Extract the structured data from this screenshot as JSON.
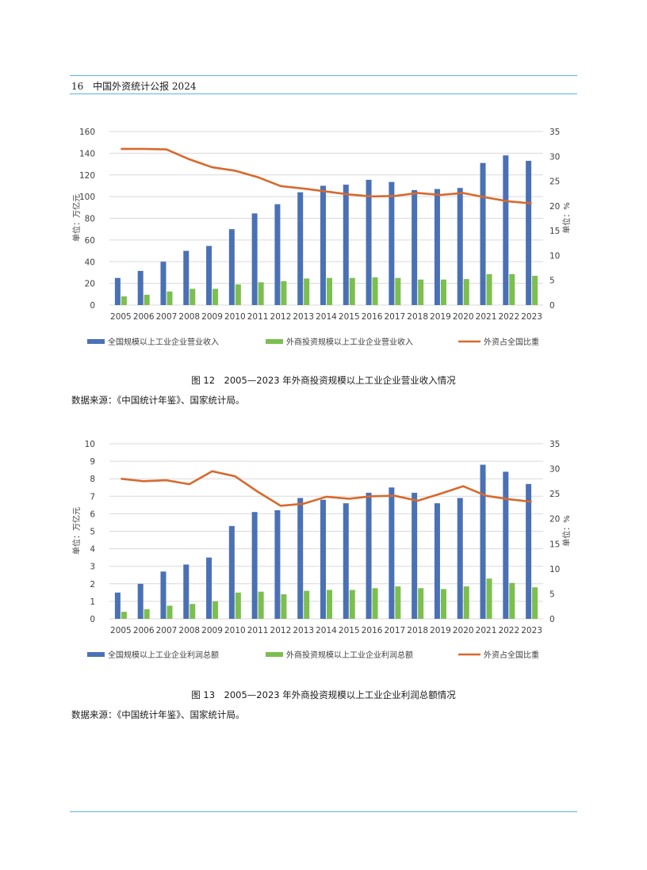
{
  "header": {
    "page_number": "16",
    "title": "中国外资统计公报 2024"
  },
  "colors": {
    "blue": "#4a71b5",
    "green": "#7cbf4f",
    "orange": "#d8692d",
    "grid": "#d9d9d9",
    "rule": "#5ab4e0"
  },
  "chart_data": [
    {
      "type": "bar",
      "title": "图 12　2005—2023 年外商投资规模以上工业企业营业收入情况",
      "categories": [
        "2005",
        "2006",
        "2007",
        "2008",
        "2009",
        "2010",
        "2011",
        "2012",
        "2013",
        "2014",
        "2015",
        "2016",
        "2017",
        "2018",
        "2019",
        "2020",
        "2021",
        "2022",
        "2023"
      ],
      "series": [
        {
          "name": "全国规模以上工业企业营业收入",
          "kind": "bar",
          "axis": "left",
          "values": [
            25,
            31.5,
            40,
            50,
            54.5,
            70,
            84.5,
            93,
            104,
            110,
            111,
            115.5,
            113.5,
            106,
            107,
            108,
            131,
            138,
            133
          ]
        },
        {
          "name": "外商投资规模以上工业企业营业收入",
          "kind": "bar",
          "axis": "left",
          "values": [
            8,
            9.5,
            12.5,
            15,
            15,
            19,
            21,
            22,
            24.5,
            25,
            25,
            25.5,
            25,
            23.5,
            23.5,
            24,
            28.5,
            28.5,
            27
          ]
        },
        {
          "name": "外资占全国比重",
          "kind": "line",
          "axis": "right",
          "values": [
            31.5,
            31.5,
            31.4,
            29.4,
            27.8,
            27.1,
            25.8,
            24.0,
            23.5,
            22.9,
            22.3,
            21.9,
            22.0,
            22.6,
            22.2,
            22.6,
            21.7,
            20.9,
            20.5
          ]
        }
      ],
      "y_left": {
        "label": "单位：万亿元",
        "ylim": [
          0,
          160
        ],
        "ticks": [
          0,
          20,
          40,
          60,
          80,
          100,
          120,
          140,
          160
        ]
      },
      "y_right": {
        "label": "单位：%",
        "ylim": [
          0,
          35
        ],
        "ticks": [
          0,
          5,
          10,
          15,
          20,
          25,
          30,
          35
        ]
      },
      "legend": [
        "全国规模以上工业企业营业收入",
        "外商投资规模以上工业企业营业收入",
        "外资占全国比重"
      ],
      "grid": true
    },
    {
      "type": "bar",
      "title": "图 13　2005—2023 年外商投资规模以上工业企业利润总额情况",
      "categories": [
        "2005",
        "2006",
        "2007",
        "2008",
        "2009",
        "2010",
        "2011",
        "2012",
        "2013",
        "2014",
        "2015",
        "2016",
        "2017",
        "2018",
        "2019",
        "2020",
        "2021",
        "2022",
        "2023"
      ],
      "series": [
        {
          "name": "全国规模以上工业企业利润总额",
          "kind": "bar",
          "axis": "left",
          "values": [
            1.5,
            2.0,
            2.7,
            3.1,
            3.5,
            5.3,
            6.1,
            6.2,
            6.9,
            6.8,
            6.6,
            7.2,
            7.5,
            7.2,
            6.6,
            6.9,
            8.8,
            8.4,
            7.7
          ]
        },
        {
          "name": "外商投资规模以上工业企业利润总额",
          "kind": "bar",
          "axis": "left",
          "values": [
            0.4,
            0.55,
            0.75,
            0.85,
            1.0,
            1.5,
            1.55,
            1.4,
            1.6,
            1.65,
            1.65,
            1.75,
            1.85,
            1.75,
            1.7,
            1.85,
            2.3,
            2.05,
            1.8
          ]
        },
        {
          "name": "外资占全国比重",
          "kind": "line",
          "axis": "right",
          "values": [
            28.0,
            27.5,
            27.7,
            26.9,
            29.5,
            28.5,
            25.4,
            22.6,
            23.0,
            24.4,
            24.0,
            24.5,
            24.6,
            23.6,
            25.0,
            26.5,
            24.6,
            23.9,
            23.4
          ]
        }
      ],
      "y_left": {
        "label": "单位：万亿元",
        "ylim": [
          0,
          10
        ],
        "ticks": [
          0,
          1,
          2,
          3,
          4,
          5,
          6,
          7,
          8,
          9,
          10
        ]
      },
      "y_right": {
        "label": "单位：%",
        "ylim": [
          0,
          35
        ],
        "ticks": [
          0,
          5,
          10,
          15,
          20,
          25,
          30,
          35
        ]
      },
      "legend": [
        "全国规模以上工业企业利润总额",
        "外商投资规模以上工业企业利润总额",
        "外资占全国比重"
      ],
      "grid": true
    }
  ],
  "captions": [
    "图 12　2005—2023 年外商投资规模以上工业企业营业收入情况",
    "图 13　2005—2023 年外商投资规模以上工业企业利润总额情况"
  ],
  "sources": [
    "数据来源：《中国统计年鉴》、国家统计局。",
    "数据来源：《中国统计年鉴》、国家统计局。"
  ]
}
